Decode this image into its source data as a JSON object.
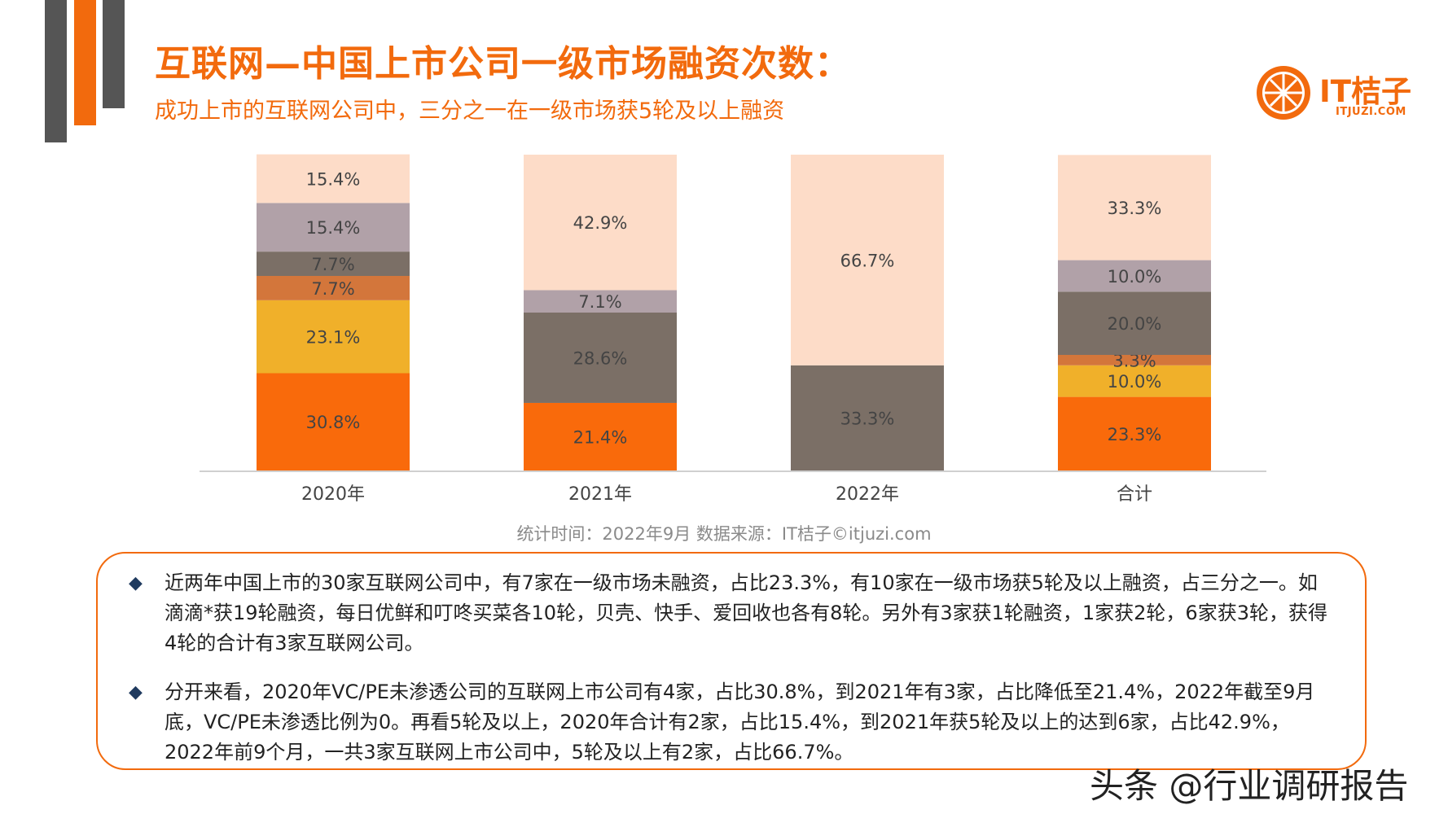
{
  "header": {
    "title": "互联网—中国上市公司一级市场融资次数：",
    "subtitle": "成功上市的互联网公司中，三分之一在一级市场获5轮及以上融资"
  },
  "logo": {
    "name": "IT桔子",
    "url_text": "ITJUZI.COM"
  },
  "colors": {
    "accent": "#f26a0d",
    "deco_gray": "#555555",
    "segments": [
      "#f96a0b",
      "#f0b02a",
      "#d3763b",
      "#7b6f66",
      "#b1a1a8",
      "#fddcc8"
    ]
  },
  "chart_data": {
    "type": "bar",
    "stacked": true,
    "normalized": true,
    "categories": [
      "2020年",
      "2021年",
      "2022年",
      "合计"
    ],
    "series": [
      {
        "values": [
          30.8,
          21.4,
          0,
          23.3
        ]
      },
      {
        "values": [
          23.1,
          0,
          0,
          10.0
        ]
      },
      {
        "values": [
          7.7,
          0,
          0,
          3.3
        ]
      },
      {
        "values": [
          7.7,
          28.6,
          33.3,
          20.0
        ]
      },
      {
        "values": [
          15.4,
          7.1,
          0,
          10.0
        ]
      },
      {
        "values": [
          15.4,
          42.9,
          66.7,
          33.3
        ]
      }
    ],
    "value_labels": [
      [
        "30.8%",
        "21.4%",
        "",
        "23.3%"
      ],
      [
        "23.1%",
        "",
        "",
        "10.0%"
      ],
      [
        "7.7%",
        "",
        "",
        "3.3%"
      ],
      [
        "7.7%",
        "28.6%",
        "33.3%",
        "20.0%"
      ],
      [
        "15.4%",
        "7.1%",
        "",
        "10.0%"
      ],
      [
        "15.4%",
        "42.9%",
        "66.7%",
        "33.3%"
      ]
    ],
    "ylim": [
      0,
      100
    ],
    "grid": false,
    "legend": "none"
  },
  "source": "统计时间：2022年9月  数据来源：IT桔子©itjuzi.com",
  "notes": [
    {
      "bullet": "◆",
      "text": "近两年中国上市的30家互联网公司中，有7家在一级市场未融资，占比23.3%，有10家在一级市场获5轮及以上融资，占三分之一。如滴滴*获19轮融资，每日优鲜和叮咚买菜各10轮，贝壳、快手、爱回收也各有8轮。另外有3家获1轮融资，1家获2轮，6家获3轮，获得4轮的合计有3家互联网公司。"
    },
    {
      "bullet": "◆",
      "text": "分开来看，2020年VC/PE未渗透公司的互联网上市公司有4家，占比30.8%，到2021年有3家，占比降低至21.4%，2022年截至9月底，VC/PE未渗透比例为0。再看5轮及以上，2020年合计有2家，占比15.4%，到2021年获5轮及以上的达到6家，占比42.9%，2022年前9个月，一共3家互联网上市公司中，5轮及以上有2家，占比66.7%。"
    }
  ],
  "watermark": "头条 @行业调研报告"
}
